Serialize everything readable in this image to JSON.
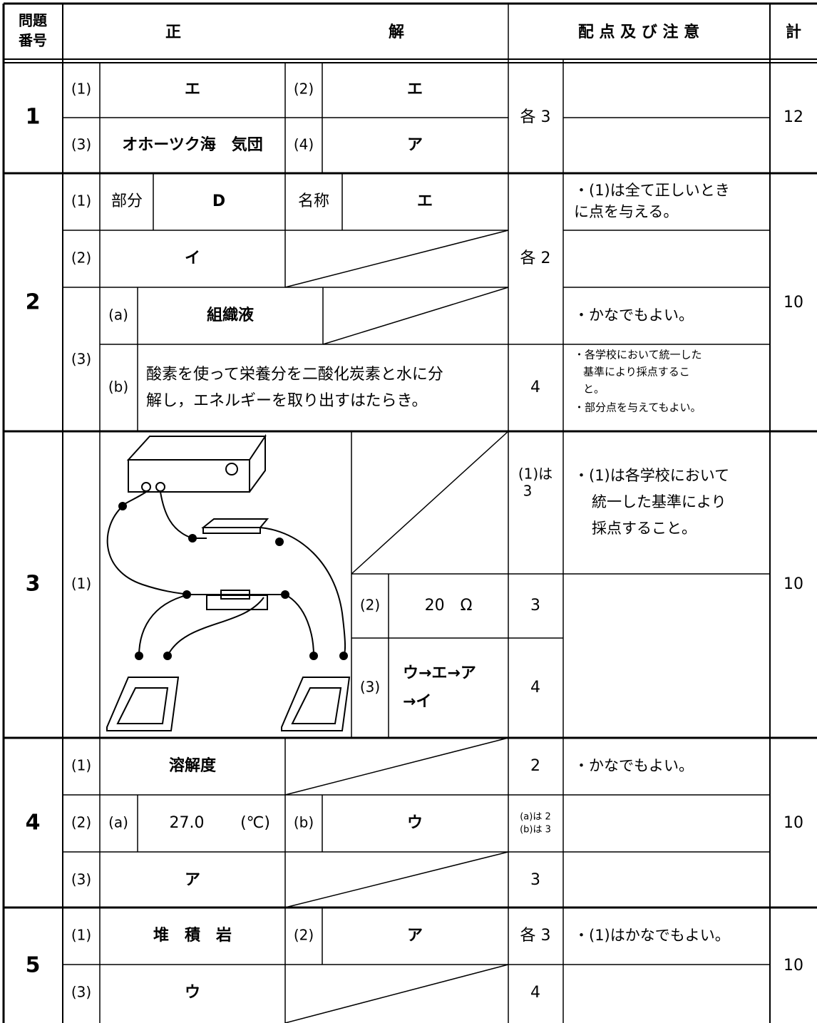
{
  "header": {
    "number": [
      "問題",
      "番号"
    ],
    "correct": "正",
    "answer": "解",
    "points_notes": "配 点 及 び 注 意",
    "total": "計"
  },
  "questions": [
    {
      "number": "1",
      "total": "12",
      "points": "各 3",
      "items": [
        {
          "label": "(1)",
          "answer": "エ"
        },
        {
          "label": "(2)",
          "answer": "エ"
        },
        {
          "label": "(3)",
          "answer": "オホーツク海　気団"
        },
        {
          "label": "(4)",
          "answer": "ア"
        }
      ]
    },
    {
      "number": "2",
      "total": "10",
      "points": "各 2",
      "items": [
        {
          "label": "(1)",
          "part_label": "部分",
          "part": "D",
          "name_label": "名称",
          "name": "エ",
          "note": [
            "・(1)は全て正しいとき",
            "に点を与える。"
          ]
        },
        {
          "label": "(2)",
          "answer": "イ"
        },
        {
          "label": "(3)",
          "sub": [
            {
              "label": "(a)",
              "answer": "組織液",
              "note": [
                "・かなでもよい。"
              ]
            },
            {
              "label": "(b)",
              "answer": [
                "酸素を使って栄養分を二酸化炭素と水に分",
                "解し，エネルギーを取り出すはたらき。"
              ],
              "points": "4",
              "note": [
                "・各学校において統一した",
                "基準により採点するこ",
                "と。",
                "・部分点を与えてもよい。"
              ]
            }
          ]
        }
      ]
    },
    {
      "number": "3",
      "total": "10",
      "items": [
        {
          "label": "(1)",
          "points": [
            "(1)は",
            "3"
          ],
          "note": [
            "・(1)は各学校において",
            "統一した基準により",
            "採点すること。"
          ]
        },
        {
          "label": "(2)",
          "answer": "20　Ω",
          "points": "3"
        },
        {
          "label": "(3)",
          "answer": [
            "ウ→エ→ア",
            "→イ"
          ],
          "points": "4"
        }
      ]
    },
    {
      "number": "4",
      "total": "10",
      "items": [
        {
          "label": "(1)",
          "answer": "溶解度",
          "points": "2",
          "note": [
            "・かなでもよい。"
          ]
        },
        {
          "label": "(2)",
          "sub": [
            {
              "label": "(a)",
              "answer": "27.0",
              "unit": "(℃)"
            },
            {
              "label": "(b)",
              "answer": "ウ"
            }
          ],
          "points": [
            "(a)は 2",
            "(b)は 3"
          ]
        },
        {
          "label": "(3)",
          "answer": "ア",
          "points": "3"
        }
      ]
    },
    {
      "number": "5",
      "total": "10",
      "points": "各 3",
      "items": [
        {
          "label": "(1)",
          "answer": "堆　積　岩",
          "note": [
            "・(1)はかなでもよい。"
          ]
        },
        {
          "label": "(2)",
          "answer": "ア"
        },
        {
          "label": "(3)",
          "answer": "ウ",
          "points": "4"
        }
      ]
    }
  ]
}
